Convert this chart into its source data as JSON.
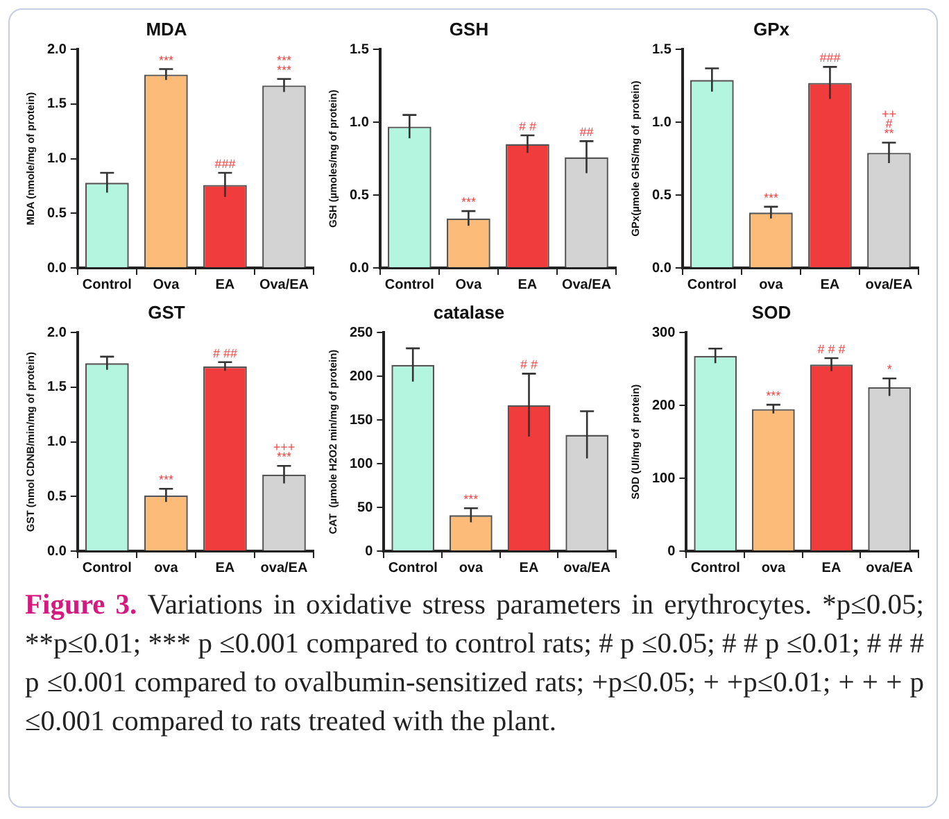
{
  "chart_data": [
    {
      "type": "bar",
      "title": "MDA",
      "ylabel": "MDA (nmole/mg of protein)",
      "categories": [
        "Control",
        "Ova",
        "EA",
        "Ova/EA"
      ],
      "values": [
        0.78,
        1.77,
        0.76,
        1.67
      ],
      "errors": [
        0.09,
        0.05,
        0.11,
        0.06
      ],
      "colors": [
        "#b3f5df",
        "#fdbb7a",
        "#f03c3c",
        "#d3d3d3"
      ],
      "ylim": [
        0,
        2
      ],
      "yticks": [
        {
          "value": 0,
          "label": "0.0"
        },
        {
          "value": 0.5,
          "label": "0.5"
        },
        {
          "value": 1,
          "label": "1.0"
        },
        {
          "value": 1.5,
          "label": "1.5"
        },
        {
          "value": 2,
          "label": "2.0"
        }
      ],
      "annotations": [
        {
          "text": "***",
          "x": "Ova",
          "y": 1.77
        },
        {
          "text": "###",
          "x": "EA",
          "y": 0.76
        },
        {
          "text": "***",
          "x": "Ova/EA",
          "y": 1.67
        },
        {
          "text": "***",
          "x": "Ova/EA",
          "y": 1.67
        }
      ]
    },
    {
      "type": "bar",
      "title": "GSH",
      "ylabel": "GSH (µmoles/mg of protein)",
      "categories": [
        "Control",
        "Ova",
        "EA",
        "Ova/EA"
      ],
      "values": [
        0.97,
        0.34,
        0.85,
        0.76
      ],
      "errors": [
        0.08,
        0.05,
        0.06,
        0.11
      ],
      "colors": [
        "#b3f5df",
        "#fdbb7a",
        "#f03c3c",
        "#d3d3d3"
      ],
      "ylim": [
        0,
        1.5
      ],
      "yticks": [
        {
          "value": 0,
          "label": "0.0"
        },
        {
          "value": 0.5,
          "label": "0.5"
        },
        {
          "value": 1,
          "label": "1.0"
        },
        {
          "value": 1.5,
          "label": "1.5"
        }
      ],
      "annotations": [
        {
          "text": "***",
          "x": "Ova",
          "y": 0.34
        },
        {
          "text": "# #",
          "x": "EA",
          "y": 0.85
        },
        {
          "text": "##",
          "x": "Ova/EA",
          "y": 0.76
        }
      ]
    },
    {
      "type": "bar",
      "title": "GPx",
      "ylabel": "GPx(µmole GHS/mg of  protein)",
      "categories": [
        "Control",
        "ova",
        "EA",
        "ova/EA"
      ],
      "values": [
        1.29,
        0.38,
        1.27,
        0.79
      ],
      "errors": [
        0.08,
        0.04,
        0.11,
        0.07
      ],
      "colors": [
        "#b3f5df",
        "#fdbb7a",
        "#f03c3c",
        "#d3d3d3"
      ],
      "ylim": [
        0,
        1.5
      ],
      "yticks": [
        {
          "value": 0,
          "label": "0.0"
        },
        {
          "value": 0.5,
          "label": "0.5"
        },
        {
          "value": 1,
          "label": "1.0"
        },
        {
          "value": 1.5,
          "label": "1.5"
        }
      ],
      "annotations": [
        {
          "text": "***",
          "x": "ova",
          "y": 0.38
        },
        {
          "text": "###",
          "x": "EA",
          "y": 1.27
        },
        {
          "text": "**",
          "x": "ova/EA",
          "y": 0.79
        },
        {
          "text": "#",
          "x": "ova/EA",
          "y": 0.79
        },
        {
          "text": "++",
          "x": "ova/EA",
          "y": 0.79
        }
      ]
    },
    {
      "type": "bar",
      "title": "GST",
      "ylabel": "GST (nmol CDNB/min/mg of protein)",
      "categories": [
        "Control",
        "ova",
        "EA",
        "ova/EA"
      ],
      "values": [
        1.72,
        0.51,
        1.69,
        0.7
      ],
      "errors": [
        0.06,
        0.06,
        0.04,
        0.08
      ],
      "colors": [
        "#b3f5df",
        "#fdbb7a",
        "#f03c3c",
        "#d3d3d3"
      ],
      "ylim": [
        0,
        2
      ],
      "yticks": [
        {
          "value": 0,
          "label": "0.0"
        },
        {
          "value": 0.5,
          "label": "0.5"
        },
        {
          "value": 1,
          "label": "1.0"
        },
        {
          "value": 1.5,
          "label": "1.5"
        },
        {
          "value": 2,
          "label": "2.0"
        }
      ],
      "annotations": [
        {
          "text": "***",
          "x": "ova",
          "y": 0.51
        },
        {
          "text": "# ##",
          "x": "EA",
          "y": 1.69
        },
        {
          "text": "***",
          "x": "ova/EA",
          "y": 0.7
        },
        {
          "text": "+++",
          "x": "ova/EA",
          "y": 0.7
        }
      ]
    },
    {
      "type": "bar",
      "title": "catalase",
      "ylabel": "CAT  (µmole H2O2 min/mg of protein)",
      "categories": [
        "Control",
        "ova",
        "EA",
        "ova/EA"
      ],
      "values": [
        213,
        41,
        167,
        133
      ],
      "errors": [
        19,
        8,
        36,
        27
      ],
      "colors": [
        "#b3f5df",
        "#fdbb7a",
        "#f03c3c",
        "#d3d3d3"
      ],
      "ylim": [
        0,
        250
      ],
      "yticks": [
        0,
        50,
        100,
        150,
        200,
        250
      ],
      "annotations": [
        {
          "text": "***",
          "x": "ova",
          "y": 41
        },
        {
          "text": "# #",
          "x": "EA",
          "y": 167
        }
      ]
    },
    {
      "type": "bar",
      "title": "SOD",
      "ylabel": "SOD (UI/mg of  protein)",
      "categories": [
        "Control",
        "ova",
        "EA",
        "ova/EA"
      ],
      "values": [
        268,
        195,
        256,
        225
      ],
      "errors": [
        10,
        6,
        9,
        12
      ],
      "colors": [
        "#b3f5df",
        "#fdbb7a",
        "#f03c3c",
        "#d3d3d3"
      ],
      "ylim": [
        0,
        300
      ],
      "yticks": [
        0,
        100,
        200,
        300
      ],
      "annotations": [
        {
          "text": "***",
          "x": "ova",
          "y": 195
        },
        {
          "text": "# # #",
          "x": "EA",
          "y": 256
        },
        {
          "text": "*",
          "x": "ova/EA",
          "y": 225
        },
        "Figure 3.",
        "Variations in oxidative stress parameters in erythrocytes. *p≤0.05; **p≤0.01; *** p ≤0.001 compared to control rats; # p ≤0.05; # # p ≤0.01; # # # p ≤0.001 compared to ovalbumin-sensitized rats; +p≤0.05; + +p≤0.01; + + + p ≤0.001 compared to rats treated with the plant."
      ]
    }
  ]
}
